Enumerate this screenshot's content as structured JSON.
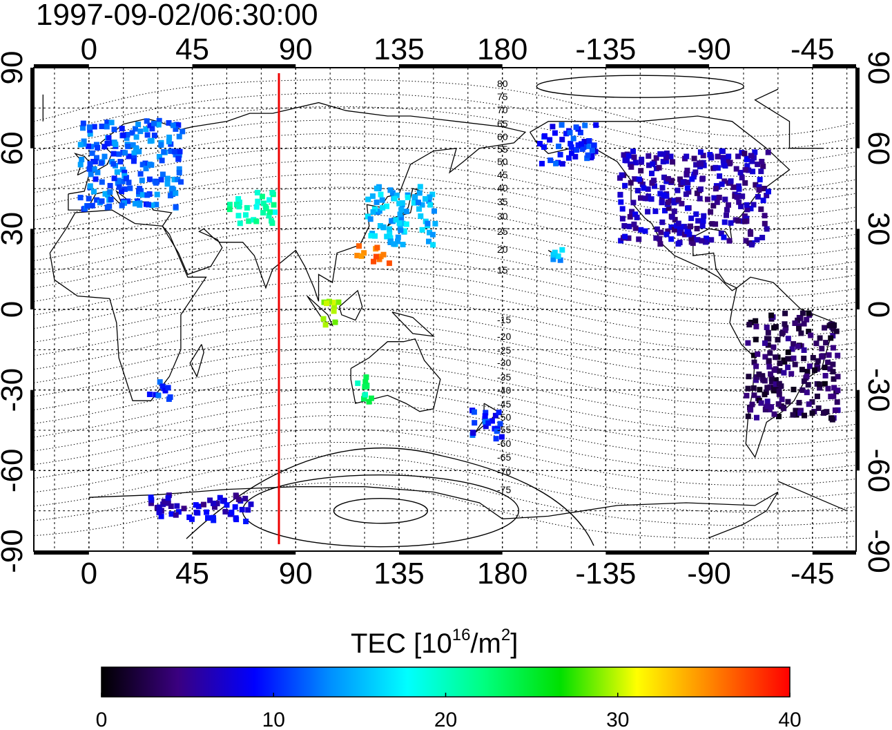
{
  "title": "1997-09-02/06:30:00",
  "top_lon_labels": [
    "0",
    "45",
    "90",
    "135",
    "180",
    "-135",
    "-90",
    "-45"
  ],
  "bottom_lon_labels": [
    "0",
    "45",
    "90",
    "135",
    "180",
    "-135",
    "-90",
    "-45"
  ],
  "left_lat_labels": [
    "90",
    "60",
    "30",
    "0",
    "-30",
    "-60",
    "-90"
  ],
  "right_lat_labels": [
    "90",
    "60",
    "30",
    "0",
    "-30",
    "-60",
    "-90"
  ],
  "contour_labels_north": [
    "80",
    "75",
    "70",
    "65",
    "60",
    "55",
    "50",
    "45",
    "40",
    "35",
    "30",
    "25",
    "20",
    "15"
  ],
  "contour_labels_south": [
    "-15",
    "-20",
    "-25",
    "-30",
    "-35",
    "-40",
    "-45",
    "-50",
    "-55",
    "-60",
    "-65",
    "-70",
    "-75"
  ],
  "colorbar": {
    "label_main": "TEC  [10",
    "label_sup1": "16",
    "label_mid": "/m",
    "label_sup2": "2",
    "label_end": "]",
    "ticks": [
      "0",
      "10",
      "20",
      "30",
      "40"
    ],
    "range": [
      0,
      40
    ],
    "colors": [
      "#000000",
      "#3a0080",
      "#0000ff",
      "#0090ff",
      "#00ffff",
      "#00ff80",
      "#00e000",
      "#ffff00",
      "#ff8000",
      "#ff0000"
    ]
  },
  "map": {
    "lon_range": [
      -24,
      334
    ],
    "lat_range": [
      -90,
      90
    ],
    "projection": "equirectangular",
    "grid": true,
    "terminator_longitude": 83
  },
  "chart_data": {
    "type": "heatmap",
    "variable": "TEC",
    "units": "10^16/m^2",
    "value_range": [
      0,
      40
    ],
    "clusters": [
      {
        "region": "Europe",
        "lon": [
          -5,
          40
        ],
        "lat": [
          38,
          72
        ],
        "tec": 12
      },
      {
        "region": "Central Asia",
        "lon": [
          60,
          80
        ],
        "lat": [
          33,
          45
        ],
        "tec": 20
      },
      {
        "region": "Japan / East Asia",
        "lon": [
          120,
          150
        ],
        "lat": [
          25,
          47
        ],
        "tec": 15
      },
      {
        "region": "South China / Taiwan",
        "lon": [
          115,
          130
        ],
        "lat": [
          18,
          25
        ],
        "tec": 36
      },
      {
        "region": "North America",
        "lon": [
          -130,
          -65
        ],
        "lat": [
          25,
          60
        ],
        "tec": 6
      },
      {
        "region": "Alaska",
        "lon": [
          -165,
          -140
        ],
        "lat": [
          55,
          70
        ],
        "tec": 10
      },
      {
        "region": "Hawaii",
        "lon": [
          -160,
          -155
        ],
        "lat": [
          18,
          24
        ],
        "tec": 15
      },
      {
        "region": "South America",
        "lon": [
          -75,
          -35
        ],
        "lat": [
          -40,
          0
        ],
        "tec": 3
      },
      {
        "region": "Australia West",
        "lon": [
          115,
          122
        ],
        "lat": [
          -35,
          -22
        ],
        "tec": 22
      },
      {
        "region": "New Zealand",
        "lon": [
          165,
          180
        ],
        "lat": [
          -48,
          -35
        ],
        "tec": 10
      },
      {
        "region": "Antarctica coast",
        "lon": [
          25,
          70
        ],
        "lat": [
          -78,
          -68
        ],
        "tec": 7
      },
      {
        "region": "Indonesia",
        "lon": [
          100,
          108
        ],
        "lat": [
          -5,
          5
        ],
        "tec": 28
      },
      {
        "region": "Southern Africa",
        "lon": [
          25,
          35
        ],
        "lat": [
          -33,
          -25
        ],
        "tec": 11
      }
    ]
  }
}
